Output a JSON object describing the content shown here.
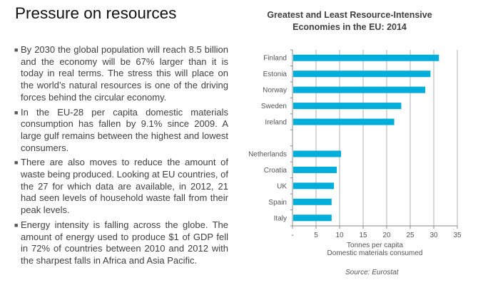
{
  "slide": {
    "title": "Pressure on resources",
    "bullets": [
      "By 2030 the global population will reach 8.5 billion and the economy will be 67% larger than it is today in real terms. The stress this will place on the world’s natural resources is one of the driving forces behind the circular economy.",
      "In the EU-28 per capita domestic materials consumption has fallen by 9.1% since 2009. A large gulf remains between the highest and lowest consumers.",
      "There are also moves to reduce the amount of waste being produced. Looking at EU countries, of the 27 for which data are available, in 2012, 21 had seen levels of household waste fall from their peak levels.",
      "Energy intensity is falling across the globe. The amount of energy used to produce $1 of GDP fell in 72% of countries between 2010 and 2012 with the sharpest falls in Africa and Asia Pacific."
    ],
    "source": "Source: Eurostat"
  },
  "chart_data": {
    "type": "bar",
    "orientation": "horizontal",
    "title": "Greatest and Least Resource-Intensive Economies in the EU: 2014",
    "title_lines": [
      "Greatest and Least Resource-Intensive",
      "Economies in the EU: 2014"
    ],
    "categories": [
      "Finland",
      "Estonia",
      "Norway",
      "Sweden",
      "Ireland",
      "",
      "Netherlands",
      "Croatia",
      "UK",
      "Spain",
      "Italy"
    ],
    "values": [
      31.1,
      29.3,
      28.2,
      23.1,
      21.6,
      null,
      10.3,
      9.4,
      8.8,
      8.3,
      8.3
    ],
    "xlabel_lines": [
      "Tonnes per capita",
      "Domestic materials consumed"
    ],
    "xlim": [
      0,
      35
    ],
    "xticks": [
      0,
      5,
      10,
      15,
      20,
      25,
      30,
      35
    ],
    "xtick_labels": [
      "-",
      "5",
      "10",
      "15",
      "20",
      "25",
      "30",
      "35"
    ],
    "grid": true,
    "color": "#00AEDB"
  }
}
